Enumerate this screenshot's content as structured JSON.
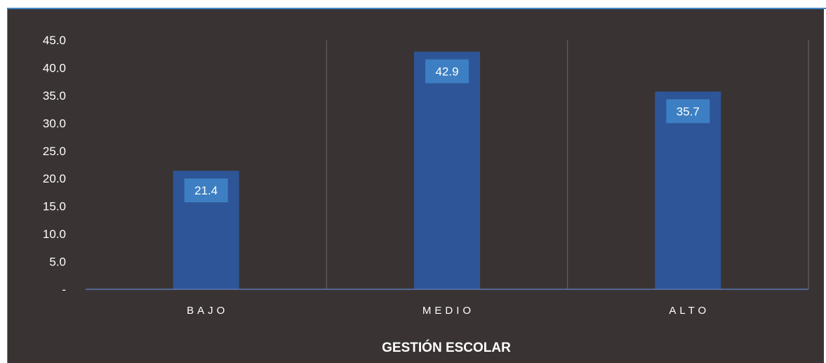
{
  "chart_data": {
    "type": "bar",
    "categories": [
      "BAJO",
      "MEDIO",
      "ALTO"
    ],
    "values": [
      21.4,
      42.9,
      35.7
    ],
    "data_labels": [
      "21.4",
      "42.9",
      "35.7"
    ],
    "xlabel": "GESTIÓN ESCOLAR",
    "ylabel": "",
    "ylim": [
      0,
      45
    ],
    "y_ticks": [
      0,
      5,
      10,
      15,
      20,
      25,
      30,
      35,
      40,
      45
    ],
    "y_tick_labels": [
      "-",
      "5.0",
      "10.0",
      "15.0",
      "20.0",
      "25.0",
      "30.0",
      "35.0",
      "40.0",
      "45.0"
    ],
    "grid": "vertical separators",
    "legend": "none"
  },
  "colors": {
    "background": "#393433",
    "bar": "#2e5597",
    "label_box": "#3d7fc2",
    "axis_line": "#5a76b0",
    "grid": "#6b6766",
    "text": "#ffffff",
    "frame_border": "#3f86c7"
  }
}
